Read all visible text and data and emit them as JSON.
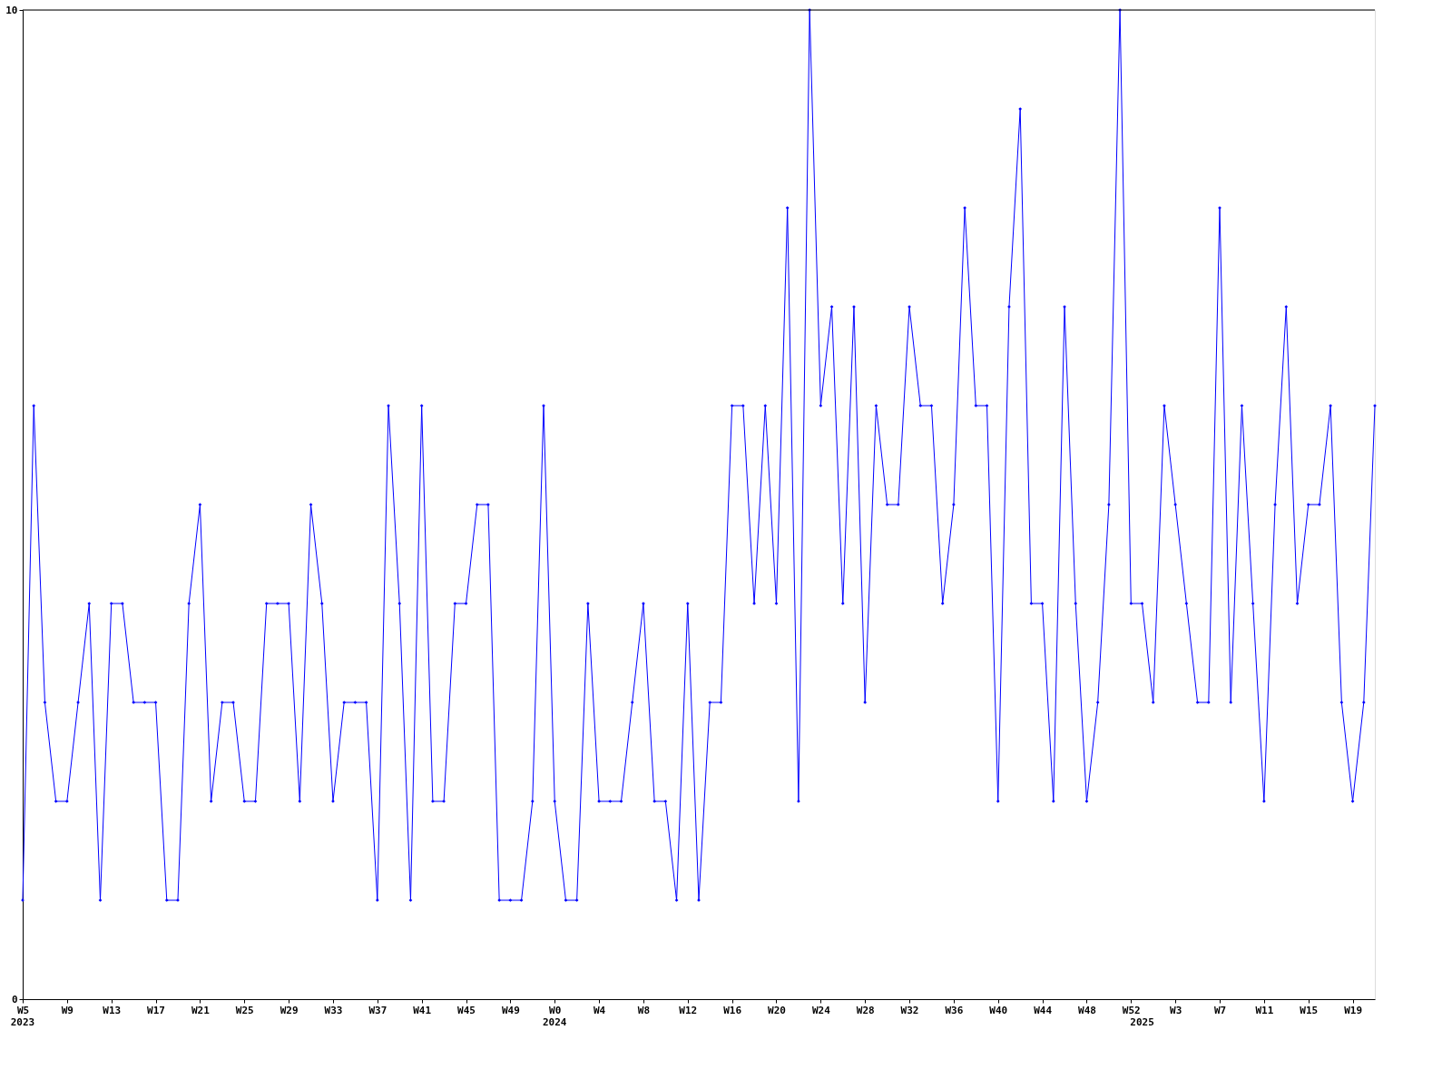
{
  "chart_data": {
    "type": "line",
    "categories": [
      "W5",
      null,
      null,
      null,
      "W9",
      null,
      null,
      null,
      "W13",
      null,
      null,
      null,
      "W17",
      null,
      null,
      null,
      "W21",
      null,
      null,
      null,
      "W25",
      null,
      null,
      null,
      "W29",
      null,
      null,
      null,
      "W33",
      null,
      null,
      null,
      "W37",
      null,
      null,
      null,
      "W41",
      null,
      null,
      null,
      "W45",
      null,
      null,
      null,
      "W49",
      null,
      null,
      null,
      "W0",
      null,
      null,
      null,
      "W4",
      null,
      null,
      null,
      "W8",
      null,
      null,
      null,
      "W12",
      null,
      null,
      null,
      "W16",
      null,
      null,
      null,
      "W20",
      null,
      null,
      null,
      "W24",
      null,
      null,
      null,
      "W28",
      null,
      null,
      null,
      "W32",
      null,
      null,
      null,
      "W36",
      null,
      null,
      null,
      "W40",
      null,
      null,
      null,
      "W44",
      null,
      null,
      null,
      "W48",
      null,
      null,
      null,
      "W52",
      null,
      null,
      null,
      "W3",
      null,
      null,
      null,
      "W7",
      null,
      null,
      null,
      "W11",
      null,
      null,
      null,
      "W15",
      null,
      null,
      null,
      "W19",
      null,
      null
    ],
    "series": [
      {
        "color": "#0000ff",
        "values": [
          1,
          6,
          3,
          2,
          2,
          3,
          4,
          1,
          4,
          4,
          3,
          3,
          3,
          1,
          1,
          4,
          5,
          2,
          3,
          3,
          2,
          2,
          4,
          4,
          4,
          2,
          5,
          4,
          2,
          3,
          3,
          3,
          1,
          6,
          4,
          1,
          6,
          2,
          2,
          4,
          4,
          5,
          5,
          1,
          1,
          1,
          2,
          6,
          2,
          1,
          1,
          4,
          2,
          2,
          2,
          3,
          4,
          2,
          2,
          1,
          4,
          1,
          3,
          3,
          6,
          6,
          4,
          6,
          4,
          8,
          2,
          10,
          6,
          7,
          4,
          7,
          3,
          6,
          5,
          5,
          7,
          6,
          6,
          4,
          5,
          8,
          6,
          6,
          2,
          7,
          9,
          4,
          4,
          2,
          7,
          4,
          2,
          3,
          5,
          10,
          4,
          4,
          3,
          6,
          5,
          4,
          3,
          3,
          8,
          3,
          6,
          4,
          2,
          5,
          7,
          4,
          5,
          5,
          6,
          3,
          2,
          3,
          6
        ]
      }
    ],
    "ylim": [
      0,
      10
    ],
    "yticks": [
      0,
      10
    ],
    "grid": false,
    "legend": false,
    "marker": "diamond",
    "line_style": "solid",
    "annotations": [
      "2023",
      "2024",
      "2025"
    ]
  }
}
